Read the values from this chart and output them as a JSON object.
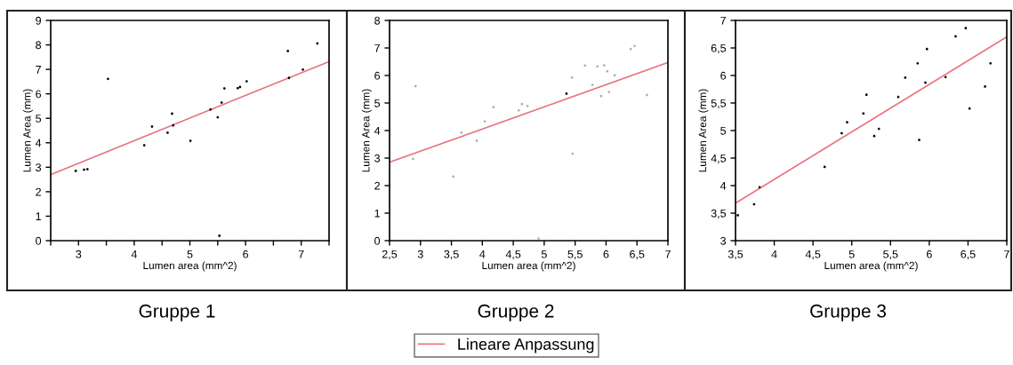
{
  "chart_data": [
    {
      "type": "scatter",
      "title": "Gruppe 1",
      "xlabel": "Lumen area (mm^2)",
      "ylabel": "Lumen Area (mm)",
      "xlim": [
        2.5,
        7.5
      ],
      "xticks": [
        {
          "value": 2.5,
          "label": null
        },
        3,
        {
          "value": 3.5,
          "label": null
        },
        4,
        {
          "value": 4.5,
          "label": null
        },
        5,
        {
          "value": 5.5,
          "label": null
        },
        6,
        {
          "value": 6.5,
          "label": null
        },
        7,
        {
          "value": 7.5,
          "label": null
        }
      ],
      "ylim": [
        0,
        9
      ],
      "yticks": [
        0,
        1,
        2,
        3,
        4,
        5,
        6,
        7,
        8,
        9
      ],
      "series": [
        {
          "type": "scatter",
          "color": "#000000",
          "x": [
            2.95,
            3.1,
            3.16,
            3.53,
            4.18,
            4.32,
            4.6,
            4.68,
            4.7,
            5.01,
            5.37,
            5.5,
            5.53,
            5.57,
            5.62,
            5.86,
            5.9,
            6.02,
            6.76,
            6.78,
            7.03,
            7.29
          ],
          "values": [
            2.85,
            2.9,
            2.92,
            6.61,
            3.9,
            4.66,
            4.41,
            5.19,
            4.71,
            4.08,
            5.36,
            5.04,
            0.2,
            5.64,
            6.22,
            6.23,
            6.28,
            6.51,
            7.75,
            6.65,
            6.99,
            8.06
          ]
        },
        {
          "type": "line",
          "color": "#e8737f",
          "x": [
            2.5,
            7.5
          ],
          "values": [
            2.7,
            7.32
          ]
        }
      ]
    },
    {
      "type": "scatter",
      "title": "Gruppe 2",
      "xlabel": "Lumen area (mm^2)",
      "ylabel": "Lumen Area (mm)",
      "legend": "bottom",
      "xlim": [
        2.5,
        7
      ],
      "xticks": [
        {
          "value": 2.5,
          "label": "2,5"
        },
        3,
        {
          "value": 3.5,
          "label": "3,5"
        },
        4,
        {
          "value": 4.5,
          "label": "4,5"
        },
        5,
        {
          "value": 5.5,
          "label": "5,5"
        },
        6,
        {
          "value": 6.5,
          "label": "6,5"
        },
        7
      ],
      "ylim": [
        0,
        8
      ],
      "yticks": [
        0,
        1,
        2,
        3,
        4,
        5,
        6,
        7,
        8
      ],
      "series": [
        {
          "type": "scatter",
          "colors": [
            "#b0b0b0",
            "#b0b0b0",
            "#b0b0b0",
            "#b0b0b0",
            "#b0b0b0",
            "#b0b0b0",
            "#b0b0b0",
            "#b0b0b0",
            "#b0b0b0",
            "#b0b0b0",
            "#b0b0b0",
            "#000000",
            "#b0b0b0",
            "#b0b0b0",
            "#b0b0b0",
            "#b0b0b0",
            "#b0b0b0",
            "#b0b0b0",
            "#b0b0b0",
            "#b0b0b0",
            "#b0b0b0",
            "#b0b0b0",
            "#b0b0b0",
            "#b0b0b0",
            "#b0b0b0"
          ],
          "x": [
            2.88,
            2.92,
            3.53,
            3.66,
            3.91,
            4.04,
            4.18,
            4.59,
            4.64,
            4.73,
            4.91,
            5.36,
            5.45,
            5.46,
            5.66,
            5.78,
            5.86,
            5.92,
            5.97,
            6.02,
            6.05,
            6.14,
            6.4,
            6.46,
            6.66
          ],
          "values": [
            2.97,
            5.61,
            2.33,
            3.92,
            3.63,
            4.33,
            4.85,
            4.73,
            4.96,
            4.89,
            0.08,
            5.34,
            5.92,
            3.16,
            6.36,
            5.66,
            6.33,
            5.25,
            6.37,
            6.15,
            5.4,
            6.01,
            6.96,
            7.07,
            5.29
          ]
        },
        {
          "type": "line",
          "name": "Lineare Anpassung",
          "color": "#e8737f",
          "x": [
            2.5,
            7
          ],
          "values": [
            2.85,
            6.47
          ]
        }
      ]
    },
    {
      "type": "scatter",
      "title": "Gruppe 3",
      "xlabel": "Lumen area (mm^2)",
      "ylabel": "Lumen Area (mm)",
      "xlim": [
        3.5,
        7
      ],
      "xticks": [
        {
          "value": 3.5,
          "label": "3,5"
        },
        4,
        {
          "value": 4.5,
          "label": "4,5"
        },
        5,
        {
          "value": 5.5,
          "label": "5,5"
        },
        6,
        {
          "value": 6.5,
          "label": "6,5"
        },
        7
      ],
      "ylim": [
        3,
        7
      ],
      "yticks": [
        3,
        {
          "value": 3.5,
          "label": "3,5"
        },
        4,
        {
          "value": 4.5,
          "label": "4,5"
        },
        5,
        {
          "value": 5.5,
          "label": "5,5"
        },
        6,
        {
          "value": 6.5,
          "label": "6,5"
        },
        7
      ],
      "series": [
        {
          "type": "scatter",
          "color": "#000000",
          "x": [
            3.53,
            3.74,
            3.81,
            4.65,
            4.87,
            4.94,
            5.15,
            5.19,
            5.29,
            5.35,
            5.6,
            5.69,
            5.85,
            5.87,
            5.95,
            5.97,
            6.21,
            6.34,
            6.47,
            6.52,
            6.72,
            6.79
          ],
          "values": [
            3.46,
            3.66,
            3.97,
            4.34,
            4.95,
            5.15,
            5.31,
            5.65,
            4.9,
            5.03,
            5.61,
            5.96,
            6.22,
            4.83,
            5.87,
            6.48,
            5.97,
            6.71,
            6.86,
            5.4,
            5.8,
            6.22
          ]
        },
        {
          "type": "line",
          "color": "#e8737f",
          "x": [
            3.5,
            7
          ],
          "values": [
            3.68,
            6.7
          ]
        }
      ]
    }
  ]
}
